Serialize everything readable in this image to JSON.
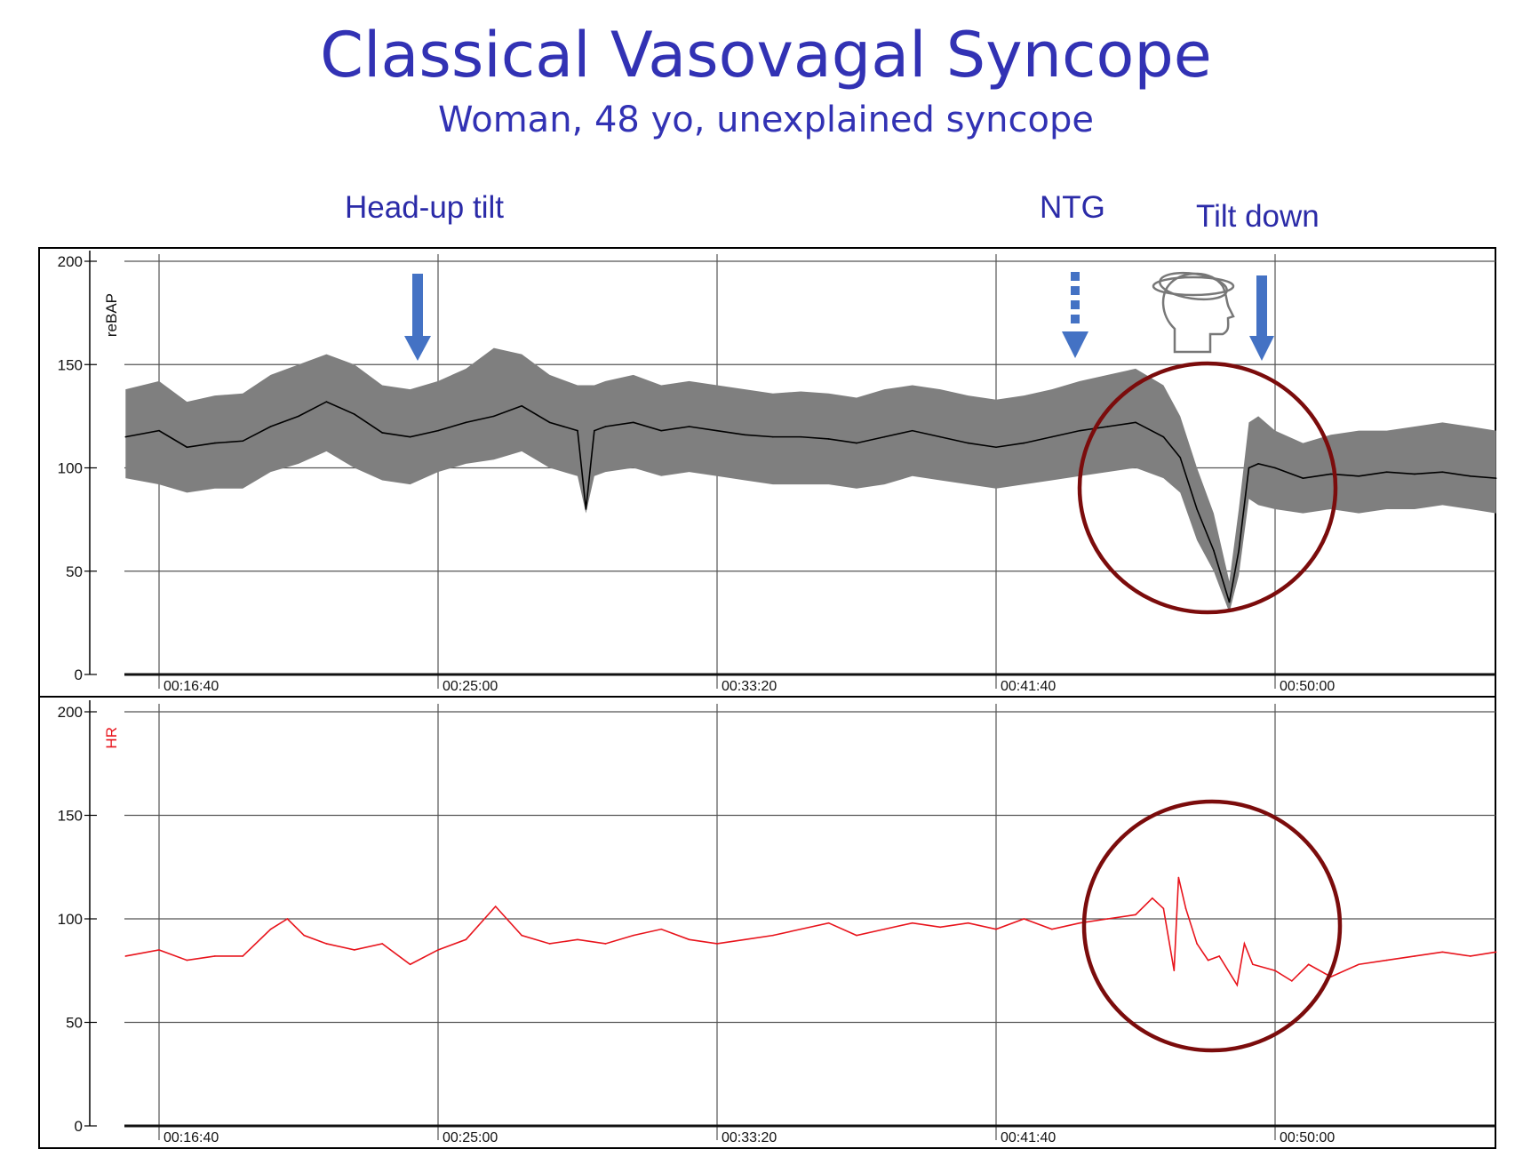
{
  "title": "Classical Vasovagal Syncope",
  "subtitle": "Woman, 48 yo, unexplained syncope",
  "annotations": {
    "head_up_tilt": "Head-up tilt",
    "ntg": "NTG",
    "tilt_down": "Tilt down",
    "syncope_icon": "dizzy-head-icon"
  },
  "colors": {
    "title": "#3232b4",
    "arrow": "#4472c4",
    "band": "#7f7f7f",
    "mean_line": "#000000",
    "hr_line": "#e8141c",
    "circle": "#7b0c0c"
  },
  "chart_data": [
    {
      "type": "area",
      "ylabel": "reBAP",
      "ylim": [
        0,
        200
      ],
      "yticks": [
        "0",
        "50",
        "100",
        "150",
        "200"
      ],
      "xticks": [
        "00:16:40",
        "00:25:00",
        "00:33:20",
        "00:41:40",
        "00:50:00"
      ],
      "grid": true,
      "x_seconds": [
        940,
        1000,
        1050,
        1100,
        1150,
        1200,
        1250,
        1300,
        1350,
        1400,
        1450,
        1500,
        1550,
        1600,
        1650,
        1700,
        1750,
        1765,
        1780,
        1800,
        1850,
        1900,
        1950,
        2000,
        2050,
        2100,
        2150,
        2200,
        2250,
        2300,
        2350,
        2400,
        2450,
        2500,
        2550,
        2600,
        2650,
        2700,
        2750,
        2800,
        2830,
        2860,
        2890,
        2918,
        2935,
        2953,
        2970,
        3000,
        3050,
        3100,
        3150,
        3200,
        3250,
        3300,
        3350,
        3396
      ],
      "series": [
        {
          "role": "mean",
          "values": [
            115,
            118,
            110,
            112,
            113,
            120,
            125,
            132,
            126,
            117,
            115,
            118,
            122,
            125,
            130,
            122,
            118,
            80,
            118,
            120,
            122,
            118,
            120,
            118,
            116,
            115,
            115,
            114,
            112,
            115,
            118,
            115,
            112,
            110,
            112,
            115,
            118,
            120,
            122,
            115,
            105,
            80,
            60,
            35,
            60,
            100,
            102,
            100,
            95,
            97,
            96,
            98,
            97,
            98,
            96,
            95
          ]
        },
        {
          "role": "upper",
          "values": [
            138,
            142,
            132,
            135,
            136,
            145,
            150,
            155,
            150,
            140,
            138,
            142,
            148,
            158,
            155,
            145,
            140,
            140,
            140,
            142,
            145,
            140,
            142,
            140,
            138,
            136,
            137,
            136,
            134,
            138,
            140,
            138,
            135,
            133,
            135,
            138,
            142,
            145,
            148,
            140,
            125,
            100,
            78,
            45,
            80,
            122,
            125,
            118,
            112,
            116,
            118,
            118,
            120,
            122,
            120,
            118
          ]
        },
        {
          "role": "lower",
          "values": [
            95,
            92,
            88,
            90,
            90,
            98,
            102,
            108,
            100,
            94,
            92,
            98,
            102,
            104,
            108,
            100,
            96,
            78,
            96,
            98,
            100,
            96,
            98,
            96,
            94,
            92,
            92,
            92,
            90,
            92,
            96,
            94,
            92,
            90,
            92,
            94,
            96,
            98,
            100,
            95,
            88,
            65,
            50,
            30,
            48,
            85,
            82,
            80,
            78,
            80,
            78,
            80,
            80,
            82,
            80,
            78
          ]
        }
      ]
    },
    {
      "type": "line",
      "ylabel": "HR",
      "ylim": [
        0,
        200
      ],
      "yticks": [
        "0",
        "50",
        "100",
        "150",
        "200"
      ],
      "xticks": [
        "00:16:40",
        "00:25:00",
        "00:33:20",
        "00:41:40",
        "00:50:00"
      ],
      "grid": true,
      "x_seconds": [
        940,
        1000,
        1050,
        1100,
        1150,
        1200,
        1230,
        1260,
        1300,
        1350,
        1400,
        1450,
        1500,
        1550,
        1603,
        1650,
        1700,
        1750,
        1800,
        1850,
        1900,
        1950,
        2000,
        2050,
        2100,
        2150,
        2200,
        2250,
        2300,
        2350,
        2400,
        2450,
        2500,
        2550,
        2600,
        2650,
        2700,
        2750,
        2780,
        2800,
        2819,
        2827,
        2840,
        2860,
        2880,
        2900,
        2932,
        2945,
        2960,
        3000,
        3030,
        3060,
        3100,
        3150,
        3200,
        3250,
        3300,
        3350,
        3396
      ],
      "series": [
        {
          "role": "HR",
          "values": [
            82,
            85,
            80,
            82,
            82,
            95,
            100,
            92,
            88,
            85,
            88,
            78,
            85,
            90,
            106,
            92,
            88,
            90,
            88,
            92,
            95,
            90,
            88,
            90,
            92,
            95,
            98,
            92,
            95,
            98,
            96,
            98,
            95,
            100,
            95,
            98,
            100,
            102,
            110,
            105,
            75,
            120,
            105,
            88,
            80,
            82,
            68,
            88,
            78,
            75,
            70,
            78,
            72,
            78,
            80,
            82,
            84,
            82,
            84
          ]
        }
      ]
    }
  ]
}
